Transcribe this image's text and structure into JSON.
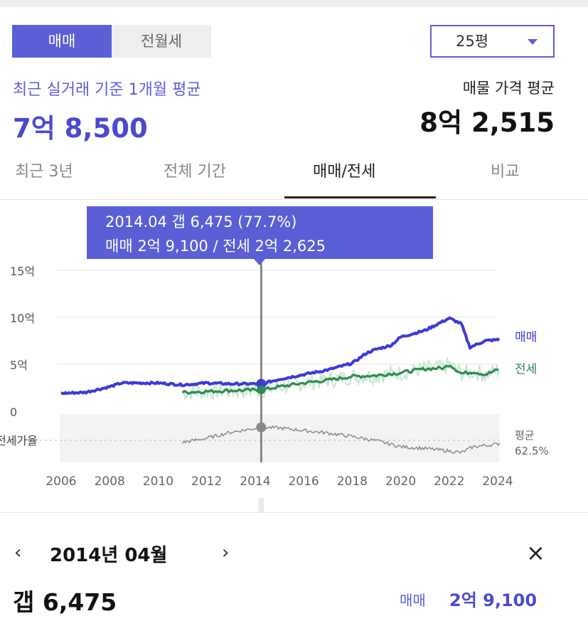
{
  "deal_type": {
    "options": [
      "매매",
      "전월세"
    ],
    "selected": "매매"
  },
  "area_select": {
    "value": "25평"
  },
  "summary": {
    "recent_label": "최근 실거래 기준 1개월 평균",
    "recent_price": "7억 8,500",
    "listing_label": "매물 가격 평균",
    "listing_price": "8억 2,515"
  },
  "tabs": [
    {
      "label": "최근 3년",
      "active": false
    },
    {
      "label": "전체 기간",
      "active": false
    },
    {
      "label": "매매/전세",
      "active": true
    },
    {
      "label": "비교",
      "active": false
    }
  ],
  "tooltip": {
    "line1": "2014.04  갭 6,475 (77.7%)",
    "line2": "매매 2억 9,100 / 전세 2억 2,625"
  },
  "chart_data": {
    "type": "line",
    "x_ticks": [
      "2006",
      "2008",
      "2010",
      "2012",
      "2014",
      "2016",
      "2018",
      "2020",
      "2022",
      "2024"
    ],
    "y_ticks": [
      "0",
      "5억",
      "10억",
      "15억"
    ],
    "ylim": [
      0,
      15
    ],
    "ratio_label": "전세가율",
    "ratio_avg_label": "평균",
    "ratio_avg_value": "62.5%",
    "colors": {
      "sale": "#3b3bd8",
      "jeonse": "#2e8b57",
      "jeonse_band": "#cde8d2",
      "ratio": "#8a8a8a"
    },
    "series": [
      {
        "name": "매매",
        "points": [
          [
            2006.0,
            1.9
          ],
          [
            2007.0,
            2.0
          ],
          [
            2008.0,
            2.6
          ],
          [
            2008.5,
            3.0
          ],
          [
            2010.0,
            3.0
          ],
          [
            2011.0,
            2.8
          ],
          [
            2012.0,
            3.0
          ],
          [
            2013.0,
            2.9
          ],
          [
            2014.25,
            2.91
          ],
          [
            2015.0,
            3.4
          ],
          [
            2016.0,
            3.9
          ],
          [
            2017.0,
            4.4
          ],
          [
            2018.0,
            5.1
          ],
          [
            2018.6,
            6.2
          ],
          [
            2019.0,
            6.6
          ],
          [
            2019.6,
            7.0
          ],
          [
            2020.0,
            7.9
          ],
          [
            2021.0,
            8.6
          ],
          [
            2022.0,
            9.9
          ],
          [
            2022.5,
            9.3
          ],
          [
            2022.85,
            6.8
          ],
          [
            2023.5,
            7.5
          ],
          [
            2024.0,
            7.6
          ],
          [
            2024.1,
            7.8
          ]
        ]
      },
      {
        "name": "전세",
        "points": [
          [
            2011.0,
            2.0
          ],
          [
            2012.0,
            2.1
          ],
          [
            2013.0,
            2.2
          ],
          [
            2014.25,
            2.26
          ],
          [
            2015.0,
            2.6
          ],
          [
            2016.0,
            3.0
          ],
          [
            2017.0,
            3.3
          ],
          [
            2018.0,
            3.7
          ],
          [
            2019.0,
            3.8
          ],
          [
            2020.0,
            4.1
          ],
          [
            2021.0,
            4.5
          ],
          [
            2021.8,
            4.6
          ],
          [
            2022.0,
            5.0
          ],
          [
            2022.5,
            4.0
          ],
          [
            2023.0,
            4.2
          ],
          [
            2023.5,
            3.9
          ],
          [
            2024.0,
            4.4
          ],
          [
            2024.1,
            4.5
          ]
        ]
      }
    ],
    "ratio_series": {
      "name": "전세가율",
      "points": [
        [
          2011.0,
          60
        ],
        [
          2012.0,
          65
        ],
        [
          2013.0,
          72
        ],
        [
          2014.25,
          77.7
        ],
        [
          2015.0,
          77
        ],
        [
          2016.0,
          74
        ],
        [
          2017.0,
          71
        ],
        [
          2018.0,
          67
        ],
        [
          2019.0,
          62
        ],
        [
          2020.0,
          55
        ],
        [
          2021.0,
          53
        ],
        [
          2022.0,
          50
        ],
        [
          2022.5,
          48
        ],
        [
          2023.0,
          55
        ],
        [
          2024.0,
          58
        ],
        [
          2024.1,
          60
        ]
      ]
    },
    "ratio_ylim": [
      40,
      90
    ],
    "ratio_avg": 62.5,
    "selected_x": 2014.25
  },
  "detail": {
    "prev_icon": "‹",
    "next_icon": "›",
    "close_icon": "×",
    "date": "2014년 04월",
    "gap": "갭 6,475",
    "sale_label": "매매",
    "sale_value": "2억 9,100"
  }
}
